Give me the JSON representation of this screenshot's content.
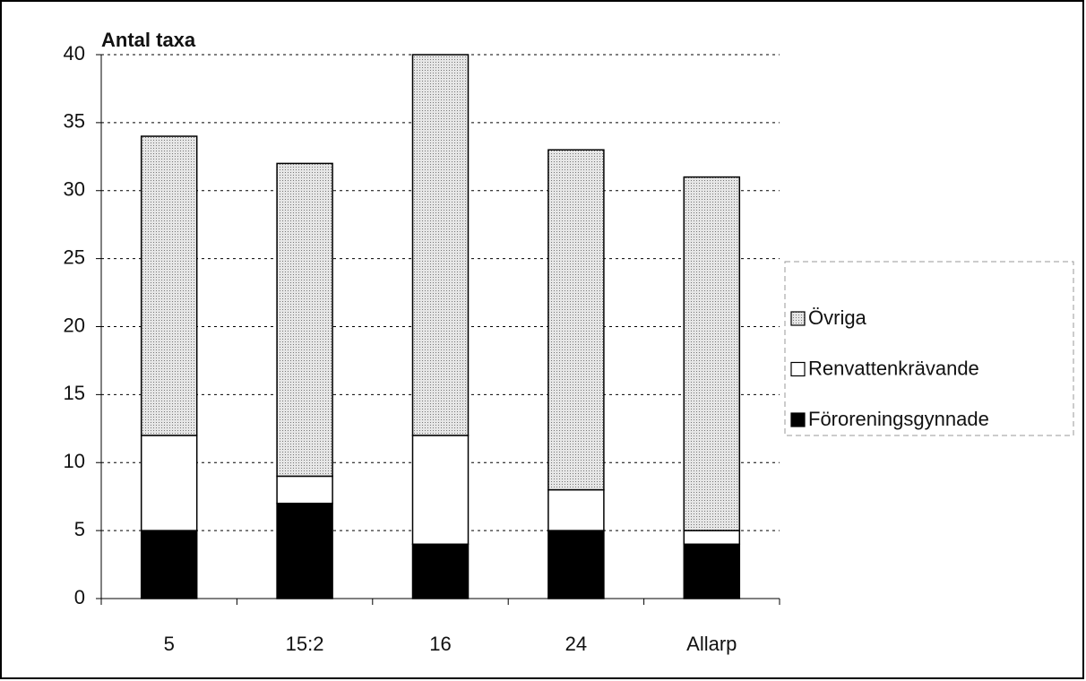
{
  "chart_data": {
    "type": "bar",
    "stacked": true,
    "title": "Antal taxa",
    "categories": [
      "5",
      "15:2",
      "16",
      "24",
      "Allarp"
    ],
    "series": [
      {
        "name": "Föroreningsgynnade",
        "color": "#000000",
        "values": [
          5,
          7,
          4,
          5,
          4
        ]
      },
      {
        "name": "Renvattenkrävande",
        "color": "#ffffff",
        "values": [
          7,
          2,
          8,
          3,
          1
        ]
      },
      {
        "name": "Övriga",
        "color": "#d4d4d4",
        "values": [
          22,
          23,
          28,
          25,
          26
        ]
      }
    ],
    "ylim": [
      0,
      40
    ],
    "yticks": [
      0,
      5,
      10,
      15,
      20,
      25,
      30,
      35,
      40
    ],
    "grid": true,
    "legend": "right"
  }
}
